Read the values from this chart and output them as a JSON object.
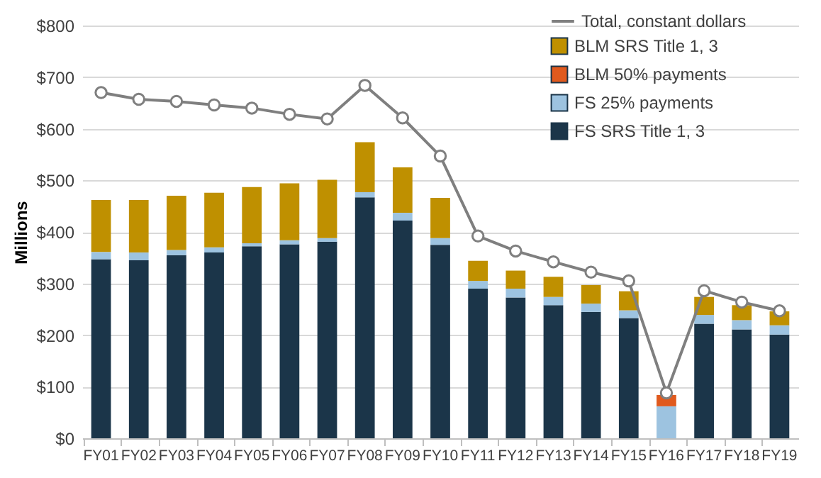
{
  "chart_data": {
    "type": "bar",
    "stacked": true,
    "ylabel": "Millions",
    "categories": [
      "FY01",
      "FY02",
      "FY03",
      "FY04",
      "FY05",
      "FY06",
      "FY07",
      "FY08",
      "FY09",
      "FY10",
      "FY11",
      "FY12",
      "FY13",
      "FY14",
      "FY15",
      "FY16",
      "FY17",
      "FY18",
      "FY19"
    ],
    "series": [
      {
        "name": "FS SRS Title 1, 3",
        "color": "#1b3549",
        "values": [
          347,
          345,
          355,
          360,
          372,
          376,
          381,
          467,
          422,
          375,
          290,
          273,
          258,
          245,
          233,
          0,
          222,
          211,
          201
        ]
      },
      {
        "name": "FS 25% payments",
        "color": "#9dc3e0",
        "values": [
          14,
          15,
          10,
          10,
          6,
          8,
          7,
          10,
          15,
          13,
          15,
          17,
          16,
          16,
          15,
          62,
          17,
          18,
          18
        ]
      },
      {
        "name": "BLM 50% payments",
        "color": "#e05a1e",
        "values": [
          0,
          0,
          0,
          0,
          0,
          0,
          0,
          0,
          0,
          0,
          0,
          0,
          0,
          0,
          0,
          22,
          0,
          0,
          0
        ]
      },
      {
        "name": "BLM SRS Title 1, 3",
        "color": "#bf9000",
        "values": [
          101,
          102,
          105,
          106,
          109,
          110,
          113,
          97,
          88,
          78,
          39,
          35,
          39,
          36,
          37,
          0,
          35,
          29,
          27
        ]
      },
      {
        "name": "Total, constant dollars",
        "type": "line",
        "color": "#7f7f7f",
        "marker": "circle",
        "values": [
          670,
          657,
          653,
          646,
          640,
          628,
          619,
          684,
          621,
          547,
          392,
          363,
          342,
          322,
          305,
          88,
          286,
          264,
          247
        ]
      }
    ],
    "ylim": [
      0,
      800
    ],
    "yticks": [
      {
        "value": 0,
        "label": "$0"
      },
      {
        "value": 100,
        "label": "$100"
      },
      {
        "value": 200,
        "label": "$200"
      },
      {
        "value": 300,
        "label": "$300"
      },
      {
        "value": 400,
        "label": "$400"
      },
      {
        "value": 500,
        "label": "$500"
      },
      {
        "value": 600,
        "label": "$600"
      },
      {
        "value": 700,
        "label": "$700"
      },
      {
        "value": 800,
        "label": "$800"
      }
    ],
    "grid": "y",
    "legend": "top right"
  }
}
